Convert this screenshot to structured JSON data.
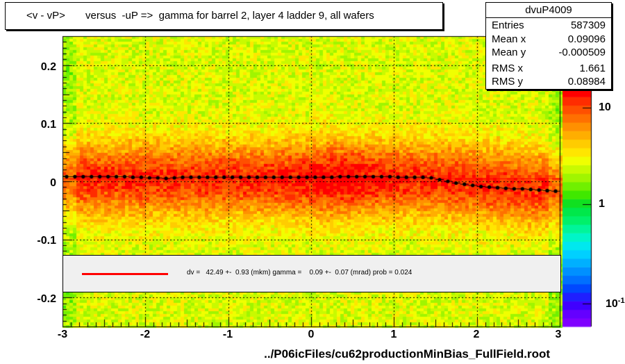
{
  "title": "<v - vP>       versus  -uP =>  gamma for barrel 2, layer 4 ladder 9, all wafers",
  "stats": {
    "name": "dvuP4009",
    "rows": [
      {
        "label": "Entries",
        "value": "587309"
      },
      {
        "label": "Mean x",
        "value": "0.09096"
      },
      {
        "label": "Mean y",
        "value": "-0.000509"
      },
      {
        "label": "RMS x",
        "value": "1.661"
      },
      {
        "label": "RMS y",
        "value": "0.08984"
      }
    ]
  },
  "fit": {
    "text": "dv =   42.49 +-  0.93 (mkm) gamma =    0.09 +-  0.07 (mrad) prob = 0.024",
    "line_color": "#ff0000"
  },
  "footer": "../P06icFiles/cu62productionMinBias_FullField.root",
  "colorbar": {
    "tick_labels": [
      "10",
      "1",
      "10"
    ],
    "tick_label_top": "10",
    "tick_label_mid": "1",
    "tick_label_bottom": "10",
    "bottom_exponent": "-1",
    "palette": [
      "#7f00ff",
      "#6400ff",
      "#4000ff",
      "#1f1fff",
      "#0048ff",
      "#0070ff",
      "#0090ff",
      "#00b0ff",
      "#00d0ff",
      "#00e8ee",
      "#00f5c8",
      "#00f59a",
      "#00f06a",
      "#00e84a",
      "#10e020",
      "#40e800",
      "#70f000",
      "#a0f500",
      "#c8fa00",
      "#f0ff00",
      "#ffe600",
      "#ffcc00",
      "#ffae00",
      "#ff9000",
      "#ff7000",
      "#ff5000",
      "#ff2c00",
      "#ff0000"
    ]
  },
  "chart_data": {
    "type": "heatmap",
    "title": "<v - vP>       versus  -uP =>  gamma for barrel 2, layer 4 ladder 9, all wafers",
    "xlabel": "",
    "ylabel": "",
    "xlim": [
      -3,
      3
    ],
    "ylim": [
      -0.25,
      0.25
    ],
    "x_ticks": [
      "-3",
      "-2",
      "-1",
      "0",
      "1",
      "2",
      "3"
    ],
    "y_ticks": [
      "0.2",
      "0.1",
      "0",
      "-0.1",
      "-0.2"
    ],
    "z_scale": "log",
    "grid": true,
    "profile_series": {
      "name": "profile",
      "x": [
        -2.95,
        -2.85,
        -2.75,
        -2.65,
        -2.55,
        -2.45,
        -2.35,
        -2.25,
        -2.15,
        -2.05,
        -1.95,
        -1.85,
        -1.75,
        -1.65,
        -1.55,
        -1.45,
        -1.35,
        -1.25,
        -1.15,
        -1.05,
        -0.95,
        -0.85,
        -0.75,
        -0.65,
        -0.55,
        -0.45,
        -0.35,
        -0.25,
        -0.15,
        -0.05,
        0.05,
        0.15,
        0.25,
        0.35,
        0.45,
        0.55,
        0.65,
        0.75,
        0.85,
        0.95,
        1.05,
        1.15,
        1.25,
        1.35,
        1.45,
        1.55,
        1.65,
        1.75,
        1.85,
        1.95,
        2.05,
        2.15,
        2.25,
        2.35,
        2.45,
        2.55,
        2.65,
        2.75,
        2.85,
        2.95
      ],
      "y": [
        0.008,
        0.008,
        0.008,
        0.008,
        0.008,
        0.008,
        0.008,
        0.008,
        0.007,
        0.007,
        0.006,
        0.006,
        0.005,
        0.006,
        0.007,
        0.007,
        0.007,
        0.007,
        0.007,
        0.007,
        0.007,
        0.007,
        0.007,
        0.007,
        0.007,
        0.007,
        0.007,
        0.007,
        0.007,
        0.007,
        0.007,
        0.007,
        0.007,
        0.008,
        0.008,
        0.008,
        0.008,
        0.008,
        0.008,
        0.008,
        0.007,
        0.007,
        0.007,
        0.007,
        0.006,
        0.003,
        0.0,
        -0.003,
        -0.005,
        -0.007,
        -0.009,
        -0.01,
        -0.011,
        -0.012,
        -0.013,
        -0.013,
        -0.014,
        -0.015,
        -0.016,
        -0.017
      ]
    },
    "fit_line": {
      "x": [
        -3,
        3
      ],
      "y": [
        0.0042,
        0.0042
      ]
    }
  }
}
